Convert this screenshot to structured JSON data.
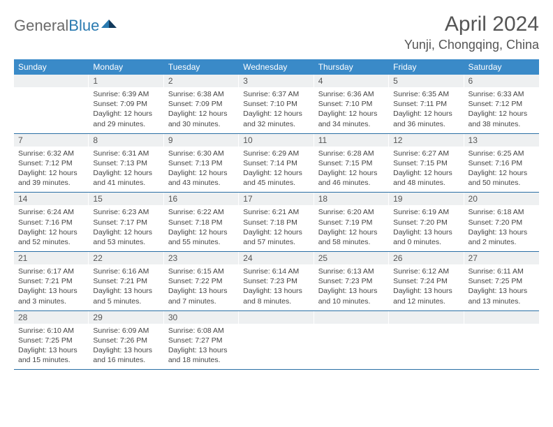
{
  "logo": {
    "general": "General",
    "blue": "Blue"
  },
  "title": "April 2024",
  "location": "Yunji, Chongqing, China",
  "colors": {
    "header_bg": "#3a8ac8",
    "header_text": "#ffffff",
    "daynum_bg": "#eef0f1",
    "week_divider": "#2a6fa5",
    "logo_gray": "#6a6a6a",
    "logo_blue": "#2a7ab0",
    "body_text": "#444444"
  },
  "days_of_week": [
    "Sunday",
    "Monday",
    "Tuesday",
    "Wednesday",
    "Thursday",
    "Friday",
    "Saturday"
  ],
  "weeks": [
    [
      {
        "n": "",
        "sr": "",
        "ss": "",
        "dl": ""
      },
      {
        "n": "1",
        "sr": "Sunrise: 6:39 AM",
        "ss": "Sunset: 7:09 PM",
        "dl": "Daylight: 12 hours and 29 minutes."
      },
      {
        "n": "2",
        "sr": "Sunrise: 6:38 AM",
        "ss": "Sunset: 7:09 PM",
        "dl": "Daylight: 12 hours and 30 minutes."
      },
      {
        "n": "3",
        "sr": "Sunrise: 6:37 AM",
        "ss": "Sunset: 7:10 PM",
        "dl": "Daylight: 12 hours and 32 minutes."
      },
      {
        "n": "4",
        "sr": "Sunrise: 6:36 AM",
        "ss": "Sunset: 7:10 PM",
        "dl": "Daylight: 12 hours and 34 minutes."
      },
      {
        "n": "5",
        "sr": "Sunrise: 6:35 AM",
        "ss": "Sunset: 7:11 PM",
        "dl": "Daylight: 12 hours and 36 minutes."
      },
      {
        "n": "6",
        "sr": "Sunrise: 6:33 AM",
        "ss": "Sunset: 7:12 PM",
        "dl": "Daylight: 12 hours and 38 minutes."
      }
    ],
    [
      {
        "n": "7",
        "sr": "Sunrise: 6:32 AM",
        "ss": "Sunset: 7:12 PM",
        "dl": "Daylight: 12 hours and 39 minutes."
      },
      {
        "n": "8",
        "sr": "Sunrise: 6:31 AM",
        "ss": "Sunset: 7:13 PM",
        "dl": "Daylight: 12 hours and 41 minutes."
      },
      {
        "n": "9",
        "sr": "Sunrise: 6:30 AM",
        "ss": "Sunset: 7:13 PM",
        "dl": "Daylight: 12 hours and 43 minutes."
      },
      {
        "n": "10",
        "sr": "Sunrise: 6:29 AM",
        "ss": "Sunset: 7:14 PM",
        "dl": "Daylight: 12 hours and 45 minutes."
      },
      {
        "n": "11",
        "sr": "Sunrise: 6:28 AM",
        "ss": "Sunset: 7:15 PM",
        "dl": "Daylight: 12 hours and 46 minutes."
      },
      {
        "n": "12",
        "sr": "Sunrise: 6:27 AM",
        "ss": "Sunset: 7:15 PM",
        "dl": "Daylight: 12 hours and 48 minutes."
      },
      {
        "n": "13",
        "sr": "Sunrise: 6:25 AM",
        "ss": "Sunset: 7:16 PM",
        "dl": "Daylight: 12 hours and 50 minutes."
      }
    ],
    [
      {
        "n": "14",
        "sr": "Sunrise: 6:24 AM",
        "ss": "Sunset: 7:16 PM",
        "dl": "Daylight: 12 hours and 52 minutes."
      },
      {
        "n": "15",
        "sr": "Sunrise: 6:23 AM",
        "ss": "Sunset: 7:17 PM",
        "dl": "Daylight: 12 hours and 53 minutes."
      },
      {
        "n": "16",
        "sr": "Sunrise: 6:22 AM",
        "ss": "Sunset: 7:18 PM",
        "dl": "Daylight: 12 hours and 55 minutes."
      },
      {
        "n": "17",
        "sr": "Sunrise: 6:21 AM",
        "ss": "Sunset: 7:18 PM",
        "dl": "Daylight: 12 hours and 57 minutes."
      },
      {
        "n": "18",
        "sr": "Sunrise: 6:20 AM",
        "ss": "Sunset: 7:19 PM",
        "dl": "Daylight: 12 hours and 58 minutes."
      },
      {
        "n": "19",
        "sr": "Sunrise: 6:19 AM",
        "ss": "Sunset: 7:20 PM",
        "dl": "Daylight: 13 hours and 0 minutes."
      },
      {
        "n": "20",
        "sr": "Sunrise: 6:18 AM",
        "ss": "Sunset: 7:20 PM",
        "dl": "Daylight: 13 hours and 2 minutes."
      }
    ],
    [
      {
        "n": "21",
        "sr": "Sunrise: 6:17 AM",
        "ss": "Sunset: 7:21 PM",
        "dl": "Daylight: 13 hours and 3 minutes."
      },
      {
        "n": "22",
        "sr": "Sunrise: 6:16 AM",
        "ss": "Sunset: 7:21 PM",
        "dl": "Daylight: 13 hours and 5 minutes."
      },
      {
        "n": "23",
        "sr": "Sunrise: 6:15 AM",
        "ss": "Sunset: 7:22 PM",
        "dl": "Daylight: 13 hours and 7 minutes."
      },
      {
        "n": "24",
        "sr": "Sunrise: 6:14 AM",
        "ss": "Sunset: 7:23 PM",
        "dl": "Daylight: 13 hours and 8 minutes."
      },
      {
        "n": "25",
        "sr": "Sunrise: 6:13 AM",
        "ss": "Sunset: 7:23 PM",
        "dl": "Daylight: 13 hours and 10 minutes."
      },
      {
        "n": "26",
        "sr": "Sunrise: 6:12 AM",
        "ss": "Sunset: 7:24 PM",
        "dl": "Daylight: 13 hours and 12 minutes."
      },
      {
        "n": "27",
        "sr": "Sunrise: 6:11 AM",
        "ss": "Sunset: 7:25 PM",
        "dl": "Daylight: 13 hours and 13 minutes."
      }
    ],
    [
      {
        "n": "28",
        "sr": "Sunrise: 6:10 AM",
        "ss": "Sunset: 7:25 PM",
        "dl": "Daylight: 13 hours and 15 minutes."
      },
      {
        "n": "29",
        "sr": "Sunrise: 6:09 AM",
        "ss": "Sunset: 7:26 PM",
        "dl": "Daylight: 13 hours and 16 minutes."
      },
      {
        "n": "30",
        "sr": "Sunrise: 6:08 AM",
        "ss": "Sunset: 7:27 PM",
        "dl": "Daylight: 13 hours and 18 minutes."
      },
      {
        "n": "",
        "sr": "",
        "ss": "",
        "dl": ""
      },
      {
        "n": "",
        "sr": "",
        "ss": "",
        "dl": ""
      },
      {
        "n": "",
        "sr": "",
        "ss": "",
        "dl": ""
      },
      {
        "n": "",
        "sr": "",
        "ss": "",
        "dl": ""
      }
    ]
  ]
}
